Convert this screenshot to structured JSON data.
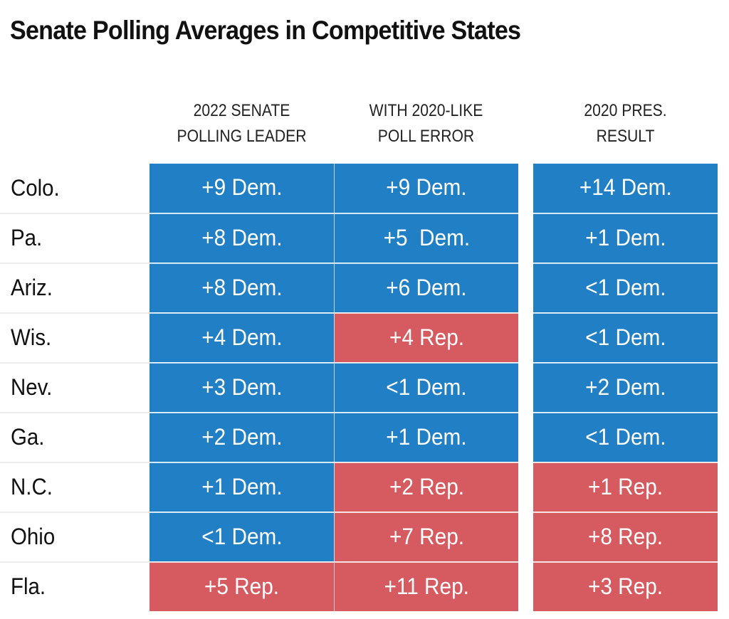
{
  "title": "Senate Polling Averages in Competitive States",
  "colors": {
    "dem": "#2180c5",
    "rep": "#d65b60",
    "divider": "#ececec"
  },
  "chart_data": {
    "type": "table",
    "title": "Senate Polling Averages in Competitive States",
    "columns": [
      {
        "label": "2022 SENATE\nPOLLING LEADER"
      },
      {
        "label": "WITH 2020-LIKE\nPOLL ERROR"
      },
      {
        "label": "2020 PRES.\nRESULT"
      }
    ],
    "rows": [
      {
        "state": "Colo.",
        "cells": [
          {
            "text": "+9 Dem.",
            "party": "dem",
            "margin": 9
          },
          {
            "text": "+9 Dem.",
            "party": "dem",
            "margin": 9
          },
          {
            "text": "+14 Dem.",
            "party": "dem",
            "margin": 14
          }
        ]
      },
      {
        "state": "Pa.",
        "cells": [
          {
            "text": "+8 Dem.",
            "party": "dem",
            "margin": 8
          },
          {
            "text": "+5  Dem.",
            "party": "dem",
            "margin": 5
          },
          {
            "text": "+1 Dem.",
            "party": "dem",
            "margin": 1
          }
        ]
      },
      {
        "state": "Ariz.",
        "cells": [
          {
            "text": "+8 Dem.",
            "party": "dem",
            "margin": 8
          },
          {
            "text": "+6 Dem.",
            "party": "dem",
            "margin": 6
          },
          {
            "text": "<1 Dem.",
            "party": "dem",
            "margin": "<1"
          }
        ]
      },
      {
        "state": "Wis.",
        "cells": [
          {
            "text": "+4 Dem.",
            "party": "dem",
            "margin": 4
          },
          {
            "text": "+4 Rep.",
            "party": "rep",
            "margin": 4
          },
          {
            "text": "<1 Dem.",
            "party": "dem",
            "margin": "<1"
          }
        ]
      },
      {
        "state": "Nev.",
        "cells": [
          {
            "text": "+3 Dem.",
            "party": "dem",
            "margin": 3
          },
          {
            "text": "<1 Dem.",
            "party": "dem",
            "margin": "<1"
          },
          {
            "text": "+2 Dem.",
            "party": "dem",
            "margin": 2
          }
        ]
      },
      {
        "state": "Ga.",
        "cells": [
          {
            "text": "+2 Dem.",
            "party": "dem",
            "margin": 2
          },
          {
            "text": "+1 Dem.",
            "party": "dem",
            "margin": 1
          },
          {
            "text": "<1 Dem.",
            "party": "dem",
            "margin": "<1"
          }
        ]
      },
      {
        "state": "N.C.",
        "cells": [
          {
            "text": "+1 Dem.",
            "party": "dem",
            "margin": 1
          },
          {
            "text": "+2 Rep.",
            "party": "rep",
            "margin": 2
          },
          {
            "text": "+1 Rep.",
            "party": "rep",
            "margin": 1
          }
        ]
      },
      {
        "state": "Ohio",
        "cells": [
          {
            "text": "<1 Dem.",
            "party": "dem",
            "margin": "<1"
          },
          {
            "text": "+7 Rep.",
            "party": "rep",
            "margin": 7
          },
          {
            "text": "+8 Rep.",
            "party": "rep",
            "margin": 8
          }
        ]
      },
      {
        "state": "Fla.",
        "cells": [
          {
            "text": "+5 Rep.",
            "party": "rep",
            "margin": 5
          },
          {
            "text": "+11 Rep.",
            "party": "rep",
            "margin": 11
          },
          {
            "text": "+3 Rep.",
            "party": "rep",
            "margin": 3
          }
        ]
      }
    ]
  }
}
